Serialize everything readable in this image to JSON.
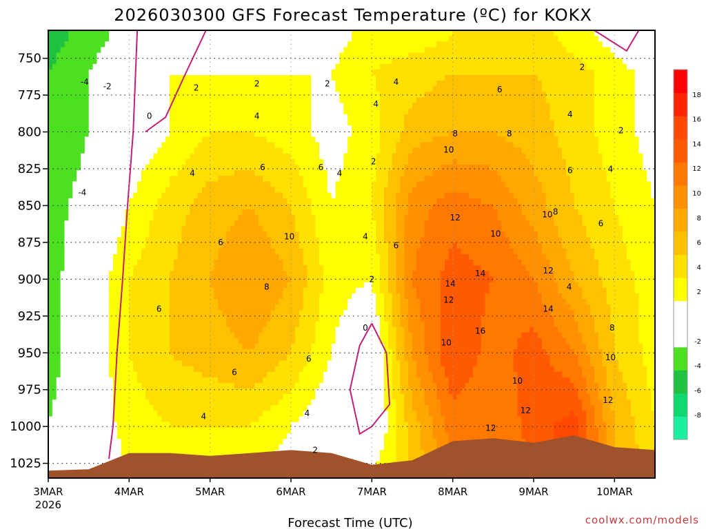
{
  "chart_data": {
    "type": "time-height contour",
    "title": "2026030300 GFS Forecast Temperature (ºC) for KOKX",
    "xlabel": "Forecast Time (UTC)",
    "ylabel": "",
    "credit": "coolwx.com/models",
    "x_ticks": [
      {
        "label": "3MAR",
        "sublabel": "2026",
        "day": 0
      },
      {
        "label": "4MAR",
        "day": 1
      },
      {
        "label": "5MAR",
        "day": 2
      },
      {
        "label": "6MAR",
        "day": 3
      },
      {
        "label": "7MAR",
        "day": 4
      },
      {
        "label": "8MAR",
        "day": 5
      },
      {
        "label": "9MAR",
        "day": 6
      },
      {
        "label": "10MAR",
        "day": 7
      }
    ],
    "xlim_days": [
      0,
      7.5
    ],
    "y_ticks": [
      750,
      775,
      800,
      825,
      850,
      875,
      900,
      925,
      950,
      975,
      1000,
      1025
    ],
    "ylim_hpa": [
      731,
      1035
    ],
    "colorbar": {
      "levels": [
        -10,
        -8,
        -6,
        -4,
        -2,
        0,
        2,
        4,
        6,
        8,
        10,
        12,
        14,
        16,
        18,
        20
      ],
      "colors": [
        "#1cf0a0",
        "#10d870",
        "#20c040",
        "#4ce020",
        "#ffffff",
        "#ffffff",
        "#ffff00",
        "#ffe000",
        "#ffc000",
        "#ffa800",
        "#ff9000",
        "#ff7800",
        "#ff5a00",
        "#ff4800",
        "#ff2400",
        "#ff0000"
      ],
      "tick_labels": [
        "-8",
        "-6",
        "-4",
        "-2",
        "2",
        "4",
        "6",
        "8",
        "10",
        "12",
        "14",
        "16",
        "18"
      ],
      "tick_values": [
        -8,
        -6,
        -4,
        -2,
        2,
        4,
        6,
        8,
        10,
        12,
        14,
        16,
        18
      ]
    },
    "surface_pressure": [
      {
        "day": 0,
        "p": 1030
      },
      {
        "day": 0.5,
        "p": 1029
      },
      {
        "day": 1,
        "p": 1018
      },
      {
        "day": 1.5,
        "p": 1018
      },
      {
        "day": 2,
        "p": 1020
      },
      {
        "day": 2.5,
        "p": 1018
      },
      {
        "day": 3,
        "p": 1016
      },
      {
        "day": 3.5,
        "p": 1018
      },
      {
        "day": 4,
        "p": 1026
      },
      {
        "day": 4.5,
        "p": 1023
      },
      {
        "day": 5,
        "p": 1010
      },
      {
        "day": 5.5,
        "p": 1008
      },
      {
        "day": 6,
        "p": 1011
      },
      {
        "day": 6.5,
        "p": 1006
      },
      {
        "day": 7,
        "p": 1014
      },
      {
        "day": 7.5,
        "p": 1016
      }
    ],
    "temperature_field": {
      "units": "degC",
      "days": [
        0,
        0.5,
        1,
        1.5,
        2,
        2.5,
        3,
        3.5,
        4,
        4.5,
        5,
        5.5,
        6,
        6.5,
        7,
        7.5
      ],
      "pressures": [
        735,
        760,
        800,
        850,
        900,
        950,
        1000,
        1030
      ],
      "rows": [
        [
          -5,
          -3,
          -1,
          1,
          1,
          1,
          1,
          1,
          3,
          3,
          4,
          5,
          5,
          3,
          1,
          -1
        ],
        [
          -4,
          -2,
          0,
          2,
          2,
          2,
          2,
          2,
          4,
          5,
          6,
          6,
          6,
          5,
          3,
          1
        ],
        [
          -4,
          -2,
          0,
          2,
          4,
          4,
          3,
          1,
          3,
          7,
          8,
          8,
          7,
          5,
          3,
          1
        ],
        [
          -3,
          -1,
          2,
          5,
          7,
          8,
          6,
          2,
          4,
          11,
          13,
          12,
          9,
          6,
          4,
          2
        ],
        [
          -3,
          0,
          4,
          6,
          8,
          10,
          8,
          3,
          2,
          12,
          15,
          14,
          12,
          8,
          5,
          3
        ],
        [
          -3,
          0,
          4,
          6,
          7,
          8,
          6,
          2,
          -1,
          10,
          16,
          13,
          15,
          12,
          6,
          3
        ],
        [
          -2,
          0,
          3,
          4,
          4,
          4,
          2,
          0,
          -1,
          7,
          13,
          12,
          15,
          17,
          8,
          4
        ],
        [
          -2,
          0,
          2,
          2,
          2,
          2,
          1,
          1,
          2,
          6,
          12,
          12,
          14,
          17,
          8,
          5
        ]
      ]
    },
    "contour_labels": [
      {
        "text": "-4",
        "day": 0.45,
        "p": 768
      },
      {
        "text": "-2",
        "day": 0.73,
        "p": 771
      },
      {
        "text": "-4",
        "day": 0.42,
        "p": 843
      },
      {
        "text": "0",
        "day": 1.25,
        "p": 791
      },
      {
        "text": "0",
        "day": 3.92,
        "p": 935
      },
      {
        "text": "2",
        "day": 1.83,
        "p": 772
      },
      {
        "text": "2",
        "day": 2.58,
        "p": 769
      },
      {
        "text": "2",
        "day": 3.45,
        "p": 769
      },
      {
        "text": "2",
        "day": 4.02,
        "p": 822
      },
      {
        "text": "2",
        "day": 4.0,
        "p": 902
      },
      {
        "text": "2",
        "day": 3.3,
        "p": 1018
      },
      {
        "text": "2",
        "day": 6.6,
        "p": 758
      },
      {
        "text": "2",
        "day": 7.08,
        "p": 801
      },
      {
        "text": "4",
        "day": 2.58,
        "p": 791
      },
      {
        "text": "4",
        "day": 1.78,
        "p": 830
      },
      {
        "text": "4",
        "day": 3.6,
        "p": 830
      },
      {
        "text": "4",
        "day": 3.92,
        "p": 873
      },
      {
        "text": "4",
        "day": 3.2,
        "p": 993
      },
      {
        "text": "4",
        "day": 1.92,
        "p": 995
      },
      {
        "text": "4",
        "day": 4.3,
        "p": 768
      },
      {
        "text": "4",
        "day": 4.05,
        "p": 783
      },
      {
        "text": "4",
        "day": 6.45,
        "p": 790
      },
      {
        "text": "4",
        "day": 6.95,
        "p": 827
      },
      {
        "text": "4",
        "day": 6.44,
        "p": 907
      },
      {
        "text": "6",
        "day": 1.37,
        "p": 922
      },
      {
        "text": "6",
        "day": 2.13,
        "p": 877
      },
      {
        "text": "6",
        "day": 2.65,
        "p": 826
      },
      {
        "text": "6",
        "day": 3.37,
        "p": 826
      },
      {
        "text": "6",
        "day": 2.3,
        "p": 965
      },
      {
        "text": "6",
        "day": 3.22,
        "p": 956
      },
      {
        "text": "6",
        "day": 5.58,
        "p": 773
      },
      {
        "text": "6",
        "day": 6.45,
        "p": 828
      },
      {
        "text": "6",
        "day": 6.83,
        "p": 864
      },
      {
        "text": "6",
        "day": 4.3,
        "p": 879
      },
      {
        "text": "8",
        "day": 2.7,
        "p": 907
      },
      {
        "text": "8",
        "day": 5.03,
        "p": 803
      },
      {
        "text": "8",
        "day": 5.7,
        "p": 803
      },
      {
        "text": "8",
        "day": 6.27,
        "p": 856
      },
      {
        "text": "8",
        "day": 6.97,
        "p": 935
      },
      {
        "text": "10",
        "day": 2.98,
        "p": 873
      },
      {
        "text": "10",
        "day": 4.95,
        "p": 814
      },
      {
        "text": "10",
        "day": 5.53,
        "p": 871
      },
      {
        "text": "10",
        "day": 6.17,
        "p": 858
      },
      {
        "text": "10",
        "day": 4.92,
        "p": 945
      },
      {
        "text": "10",
        "day": 5.8,
        "p": 971
      },
      {
        "text": "10",
        "day": 6.95,
        "p": 955
      },
      {
        "text": "12",
        "day": 5.03,
        "p": 860
      },
      {
        "text": "12",
        "day": 4.95,
        "p": 916
      },
      {
        "text": "12",
        "day": 6.18,
        "p": 896
      },
      {
        "text": "12",
        "day": 5.9,
        "p": 991
      },
      {
        "text": "12",
        "day": 5.47,
        "p": 1003
      },
      {
        "text": "12",
        "day": 6.92,
        "p": 984
      },
      {
        "text": "14",
        "day": 5.34,
        "p": 898
      },
      {
        "text": "14",
        "day": 4.97,
        "p": 905
      },
      {
        "text": "14",
        "day": 6.18,
        "p": 922
      },
      {
        "text": "16",
        "day": 5.34,
        "p": 937
      }
    ],
    "zero_isotherm_segments": [
      [
        [
          1.1,
          731
        ],
        [
          1.05,
          800
        ],
        [
          0.98,
          850
        ],
        [
          0.92,
          900
        ],
        [
          0.85,
          950
        ],
        [
          0.8,
          1000
        ],
        [
          0.75,
          1022
        ]
      ],
      [
        [
          1.95,
          731
        ],
        [
          1.7,
          760
        ],
        [
          1.45,
          790
        ],
        [
          1.2,
          800
        ]
      ],
      [
        [
          6.75,
          731
        ],
        [
          6.95,
          738
        ],
        [
          7.15,
          745
        ],
        [
          7.3,
          731
        ]
      ],
      [
        [
          4.0,
          930
        ],
        [
          3.85,
          945
        ],
        [
          3.73,
          975
        ],
        [
          3.85,
          1005
        ],
        [
          4.0,
          1000
        ],
        [
          4.22,
          985
        ],
        [
          4.18,
          950
        ],
        [
          4.0,
          930
        ]
      ]
    ],
    "zero_isotherm_color": "#c21e78",
    "terrain_color": "#a0522d",
    "dashed_negative_contours": true
  }
}
